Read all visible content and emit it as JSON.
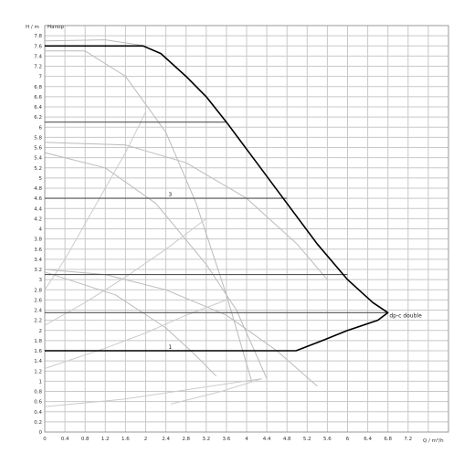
{
  "chart_data": {
    "type": "line",
    "y_axis_label": "H / m",
    "y_axis_title": "Напор",
    "x_axis_label": "Q / m³/h",
    "xlim": [
      0,
      8
    ],
    "ylim": [
      0,
      8
    ],
    "x_ticks": [
      "0",
      "0.4",
      "0.8",
      "1.2",
      "1.6",
      "2",
      "2.4",
      "2.8",
      "3.2",
      "3.6",
      "4",
      "4.4",
      "4.8",
      "5.2",
      "5.6",
      "6",
      "6.4",
      "6.8",
      "7.2"
    ],
    "y_ticks": [
      "0",
      "0.2",
      "0.4",
      "0.6",
      "0.8",
      "1",
      "1.2",
      "1.4",
      "1.6",
      "1.8",
      "2",
      "2.2",
      "2.4",
      "2.6",
      "2.8",
      "3",
      "3.2",
      "3.4",
      "3.6",
      "3.8",
      "4",
      "4.2",
      "4.4",
      "4.6",
      "4.8",
      "5",
      "5.2",
      "5.4",
      "5.6",
      "5.8",
      "6",
      "6.2",
      "6.4",
      "6.6",
      "6.8",
      "7",
      "7.2",
      "7.4",
      "7.6",
      "7.8"
    ],
    "grid": true,
    "series": [
      {
        "name": "dp-c double",
        "role": "envelope",
        "color": "#000000",
        "points": [
          [
            0,
            7.6
          ],
          [
            1.95,
            7.6
          ],
          [
            2.3,
            7.45
          ],
          [
            2.8,
            7.0
          ],
          [
            3.2,
            6.6
          ],
          [
            3.6,
            6.1
          ],
          [
            4.2,
            5.3
          ],
          [
            4.8,
            4.5
          ],
          [
            5.4,
            3.7
          ],
          [
            6.0,
            3.0
          ],
          [
            6.5,
            2.55
          ],
          [
            6.8,
            2.35
          ],
          [
            6.6,
            2.2
          ],
          [
            6.0,
            2.0
          ],
          [
            5.5,
            1.8
          ],
          [
            4.98,
            1.6
          ],
          [
            0,
            1.6
          ]
        ]
      },
      {
        "name": "3",
        "role": "setpoint",
        "color": "#555555",
        "points": [
          [
            0,
            4.6
          ],
          [
            4.8,
            4.6
          ]
        ]
      },
      {
        "name": "1",
        "role": "setpoint",
        "color": "#555555",
        "points": [
          [
            0,
            1.6
          ],
          [
            4.98,
            1.6
          ]
        ]
      },
      {
        "role": "setpoint",
        "color": "#555555",
        "points": [
          [
            0,
            6.1
          ],
          [
            3.6,
            6.1
          ]
        ]
      },
      {
        "role": "setpoint",
        "color": "#555555",
        "points": [
          [
            0,
            3.1
          ],
          [
            6.0,
            3.1
          ]
        ]
      },
      {
        "role": "setpoint",
        "color": "#555555",
        "points": [
          [
            0,
            2.35
          ],
          [
            6.8,
            2.35
          ]
        ]
      },
      {
        "role": "pump-curve",
        "color": "#bbbbbb",
        "points": [
          [
            0,
            7.7
          ],
          [
            1.2,
            7.72
          ],
          [
            2.0,
            7.6
          ]
        ]
      },
      {
        "role": "pump-curve",
        "color": "#bbbbbb",
        "points": [
          [
            0,
            7.5
          ],
          [
            0.8,
            7.5
          ],
          [
            1.6,
            7.0
          ],
          [
            2.4,
            5.9
          ],
          [
            3.0,
            4.5
          ],
          [
            3.6,
            2.7
          ],
          [
            4.1,
            1.0
          ]
        ]
      },
      {
        "role": "pump-curve",
        "color": "#bbbbbb",
        "points": [
          [
            0,
            5.7
          ],
          [
            1.6,
            5.65
          ],
          [
            2.8,
            5.3
          ],
          [
            4.0,
            4.6
          ],
          [
            5.0,
            3.7
          ],
          [
            5.6,
            3.0
          ]
        ]
      },
      {
        "role": "pump-curve",
        "color": "#bbbbbb",
        "points": [
          [
            0,
            5.5
          ],
          [
            1.2,
            5.2
          ],
          [
            2.2,
            4.5
          ],
          [
            3.2,
            3.3
          ],
          [
            3.8,
            2.4
          ],
          [
            4.4,
            1.05
          ]
        ]
      },
      {
        "role": "pump-curve",
        "color": "#bbbbbb",
        "points": [
          [
            0,
            3.2
          ],
          [
            1.2,
            3.1
          ],
          [
            2.4,
            2.8
          ],
          [
            3.6,
            2.3
          ],
          [
            4.6,
            1.6
          ],
          [
            5.4,
            0.9
          ]
        ]
      },
      {
        "role": "pump-curve",
        "color": "#bbbbbb",
        "points": [
          [
            0,
            3.15
          ],
          [
            1.4,
            2.7
          ],
          [
            2.4,
            2.05
          ],
          [
            3.0,
            1.5
          ],
          [
            3.4,
            1.1
          ]
        ]
      },
      {
        "role": "system-curve",
        "color": "#cccccc",
        "points": [
          [
            0,
            0.5
          ],
          [
            1.6,
            0.65
          ],
          [
            2.6,
            0.8
          ],
          [
            3.6,
            0.95
          ],
          [
            4.3,
            1.05
          ]
        ]
      },
      {
        "role": "system-curve",
        "color": "#cccccc",
        "points": [
          [
            0,
            1.25
          ],
          [
            1.2,
            1.65
          ],
          [
            2.0,
            1.95
          ],
          [
            2.8,
            2.3
          ],
          [
            3.6,
            2.6
          ]
        ]
      },
      {
        "role": "system-curve",
        "color": "#cccccc",
        "points": [
          [
            0,
            2.1
          ],
          [
            0.8,
            2.55
          ],
          [
            1.6,
            3.05
          ],
          [
            2.4,
            3.6
          ],
          [
            3.2,
            4.2
          ]
        ]
      },
      {
        "role": "system-curve",
        "color": "#cccccc",
        "points": [
          [
            0,
            2.8
          ],
          [
            0.4,
            3.4
          ],
          [
            0.8,
            4.1
          ],
          [
            1.2,
            4.8
          ],
          [
            1.6,
            5.5
          ],
          [
            2.0,
            6.3
          ]
        ]
      },
      {
        "role": "system-curve",
        "color": "#cccccc",
        "points": [
          [
            2.5,
            0.55
          ],
          [
            3.5,
            0.8
          ],
          [
            4.3,
            1.05
          ]
        ]
      }
    ],
    "annotations": [
      {
        "text": "3",
        "x": 2.45,
        "y": 4.6
      },
      {
        "text": "1",
        "x": 2.45,
        "y": 1.6
      },
      {
        "text": "dp-c double",
        "x": 6.83,
        "y": 2.22
      }
    ]
  }
}
